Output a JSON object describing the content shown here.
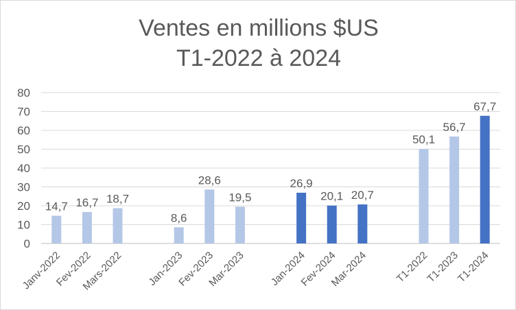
{
  "chart_data": {
    "type": "bar",
    "title_line1": "Ventes en millions $US",
    "title_line2": "T1-2022 à 2024",
    "xlabel": "",
    "ylabel": "",
    "ylim": [
      0,
      80
    ],
    "yticks": [
      "0",
      "10",
      "20",
      "30",
      "40",
      "50",
      "60",
      "70",
      "80"
    ],
    "grid": true,
    "legend": "none",
    "categories": [
      "Janv-2022",
      "Fev-2022",
      "Mars-2022",
      "",
      "Jan-2023",
      "Fev-2023",
      "Mar-2023",
      "",
      "Jan-2024",
      "Fev-2024",
      "Mar-2024",
      "",
      "T1-2022",
      "T1-2023",
      "T1-2024"
    ],
    "values": [
      14.7,
      16.7,
      18.7,
      null,
      8.6,
      28.6,
      19.5,
      null,
      26.9,
      20.1,
      20.7,
      null,
      50.1,
      56.7,
      67.7
    ],
    "labels": [
      "14,7",
      "16,7",
      "18,7",
      "",
      "8,6",
      "28,6",
      "19,5",
      "",
      "26,9",
      "20,1",
      "20,7",
      "",
      "50,1",
      "56,7",
      "67,7"
    ],
    "highlight": [
      false,
      false,
      false,
      false,
      false,
      false,
      false,
      false,
      true,
      true,
      true,
      false,
      false,
      false,
      true
    ],
    "colors": {
      "base": "#b4c7e7",
      "highlight": "#4472c4",
      "grid": "#d9d9d9",
      "text": "#595959"
    }
  }
}
